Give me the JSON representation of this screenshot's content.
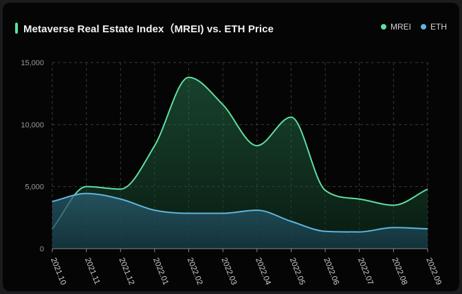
{
  "title": "Metaverse Real Estate Index（MREI) vs. ETH Price",
  "colors": {
    "mrei": "#5fe0a0",
    "eth": "#5fb6de",
    "grid": "#3a3a3a",
    "axis": "#8a8a8a"
  },
  "legend": [
    {
      "name": "MREI",
      "color": "#5fe0a0"
    },
    {
      "name": "ETH",
      "color": "#5fb6de"
    }
  ],
  "chart_data": {
    "type": "area",
    "categories": [
      "2021.10",
      "2021.11",
      "2021.12",
      "2022.01",
      "2022.02",
      "2022.03",
      "2022.04",
      "2022.05",
      "2022.06",
      "2022.07",
      "2022.08",
      "2022.09"
    ],
    "ylim": [
      0,
      15000
    ],
    "yticks": [
      0,
      5000,
      10000,
      15000
    ],
    "ytick_labels": [
      "0",
      "5,000",
      "10,000",
      "15,000"
    ],
    "grid": true,
    "legend_position": "top-right",
    "series": [
      {
        "name": "MREI",
        "values": [
          1600,
          5000,
          4800,
          8300,
          13800,
          11600,
          8300,
          10600,
          4700,
          4000,
          3500,
          4800
        ]
      },
      {
        "name": "ETH",
        "values": [
          3800,
          4450,
          4000,
          3100,
          2850,
          2850,
          3100,
          2200,
          1400,
          1350,
          1700,
          1600
        ]
      }
    ]
  }
}
